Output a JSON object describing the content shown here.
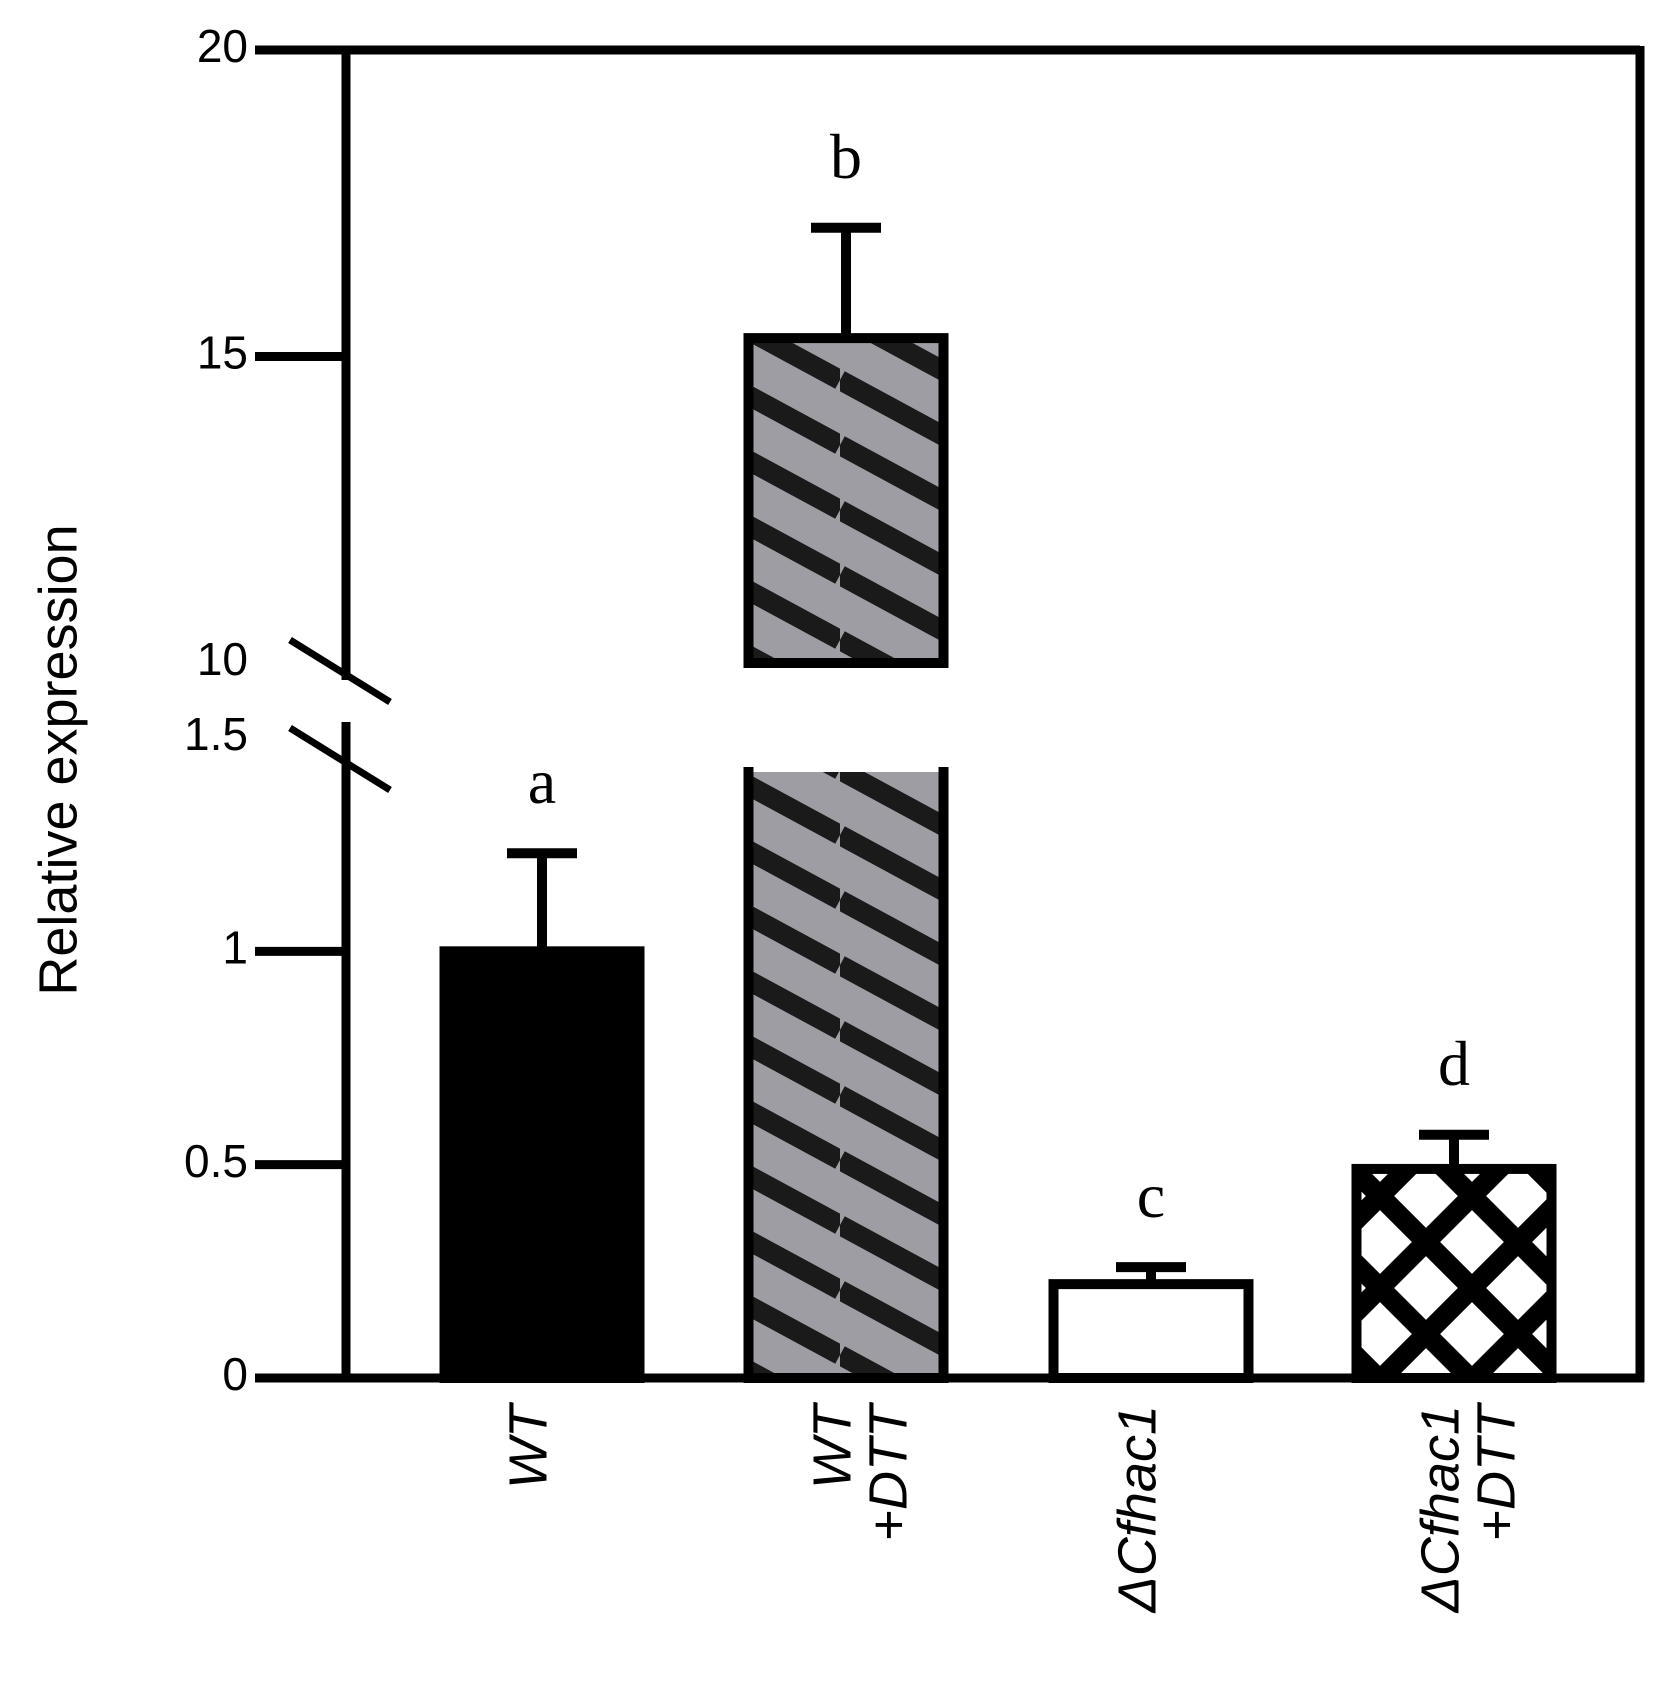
{
  "chart_data": {
    "type": "bar",
    "ylabel": "Relative expression",
    "y_axis": {
      "broken": true,
      "lower_segment": {
        "range": [
          0,
          1.5
        ],
        "ticks": [
          "0",
          "0.5",
          "1",
          "1.5"
        ]
      },
      "upper_segment": {
        "range": [
          10,
          20
        ],
        "ticks": [
          "10",
          "15",
          "20"
        ]
      }
    },
    "categories": [
      {
        "lines": [
          "WT"
        ],
        "prefix": ""
      },
      {
        "lines": [
          "WT",
          "+DTT"
        ],
        "prefix": ""
      },
      {
        "lines": [
          "Cfhac1"
        ],
        "prefix": "Δ"
      },
      {
        "lines": [
          "Cfhac1",
          "+DTT"
        ],
        "prefix": "Δ"
      }
    ],
    "values": [
      1.0,
      15.3,
      0.22,
      0.49
    ],
    "errors": [
      0.23,
      1.8,
      0.04,
      0.08
    ],
    "significance": [
      "a",
      "b",
      "c",
      "d"
    ],
    "fills": [
      "solid-black",
      "diagonal-stripes-gray",
      "white",
      "crosshatch-black"
    ],
    "colors": {
      "bar_black": "#000000",
      "stripe_gray": "#9e9da3",
      "white": "#ffffff"
    },
    "grid": false,
    "legend": "none"
  }
}
